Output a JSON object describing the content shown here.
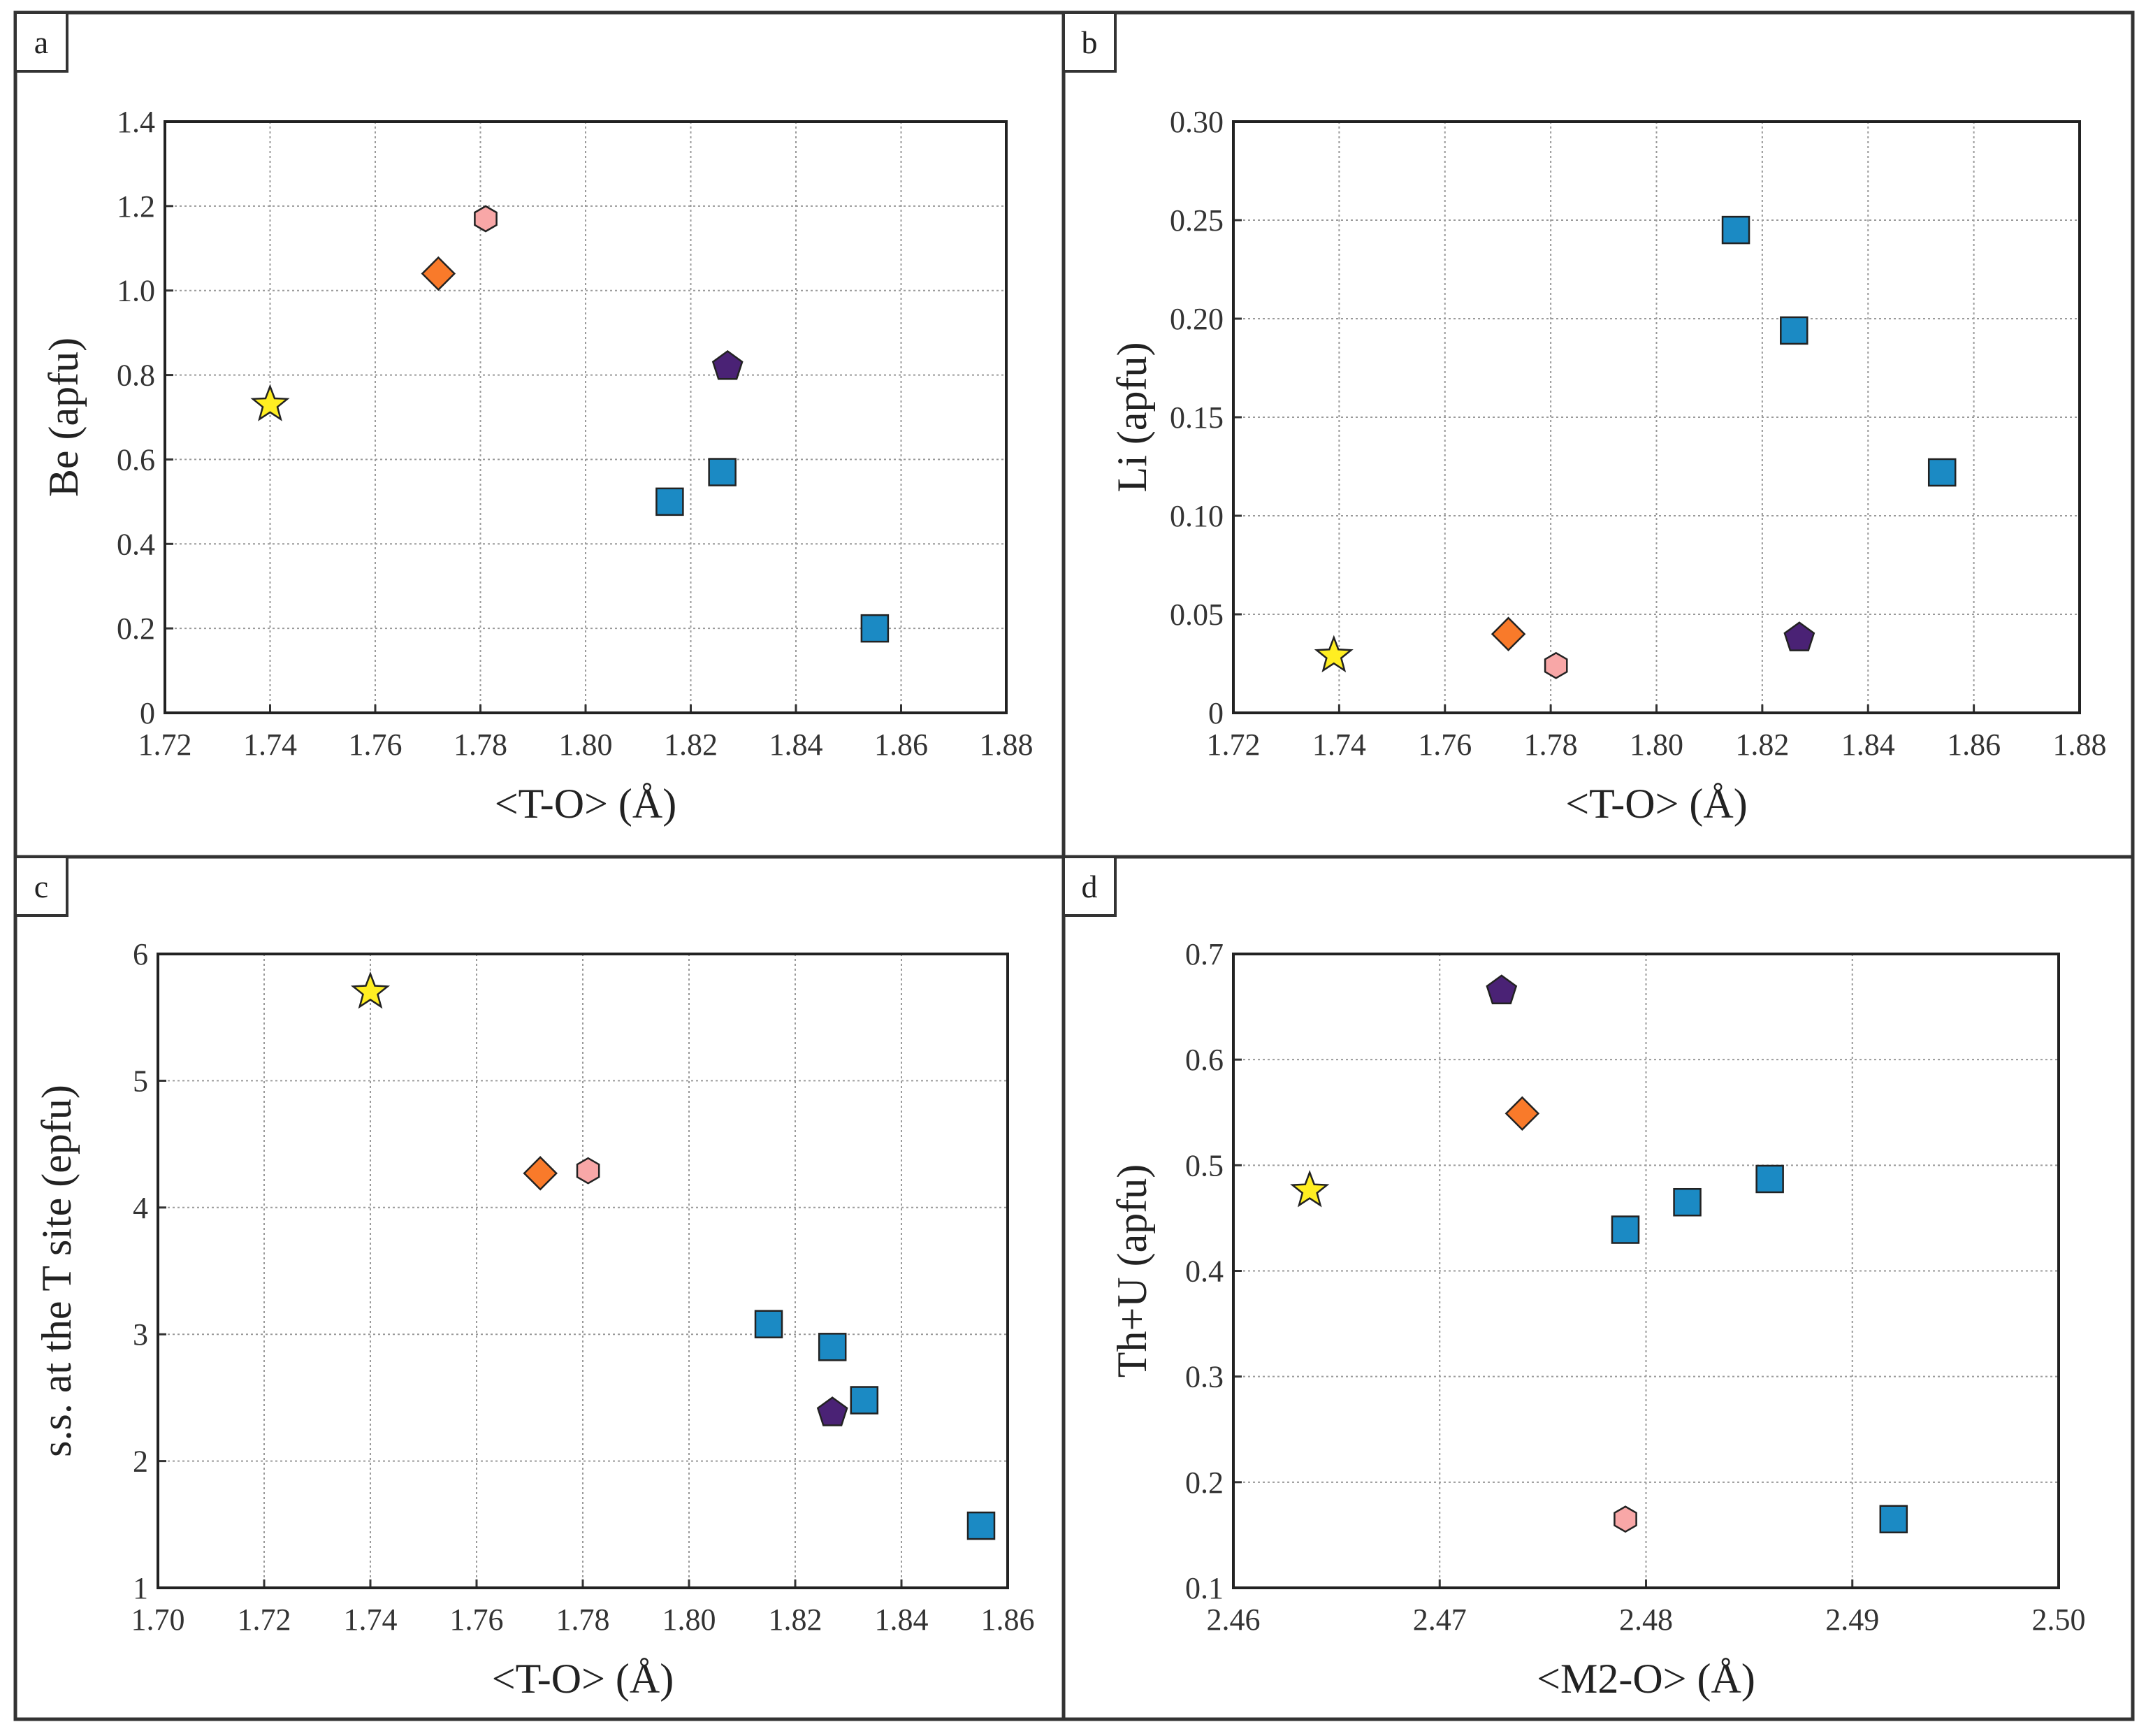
{
  "colors": {
    "star": "#ffee22",
    "diamond": "#f97a2a",
    "hexagon": "#f8a7a7",
    "pentagon": "#4a2275",
    "square": "#1b8ac4"
  },
  "chart_data": [
    {
      "type": "scatter",
      "panel": "a",
      "xlabel": "<T-O> (Å)",
      "ylabel": "Be (apfu)",
      "xlim": [
        1.72,
        1.88
      ],
      "ylim": [
        0,
        1.4
      ],
      "xticks": [
        "1.72",
        "1.74",
        "1.76",
        "1.78",
        "1.80",
        "1.82",
        "1.84",
        "1.86",
        "1.88"
      ],
      "yticks": [
        "0",
        "0.2",
        "0.4",
        "0.6",
        "0.8",
        "1.0",
        "1.2",
        "1.4"
      ],
      "grid": true,
      "points": [
        {
          "marker": "star",
          "x": 1.74,
          "y": 0.73
        },
        {
          "marker": "diamond",
          "x": 1.772,
          "y": 1.04
        },
        {
          "marker": "hexagon",
          "x": 1.781,
          "y": 1.17
        },
        {
          "marker": "pentagon",
          "x": 1.827,
          "y": 0.82
        },
        {
          "marker": "square",
          "x": 1.816,
          "y": 0.5
        },
        {
          "marker": "square",
          "x": 1.826,
          "y": 0.57
        },
        {
          "marker": "square",
          "x": 1.855,
          "y": 0.2
        }
      ]
    },
    {
      "type": "scatter",
      "panel": "b",
      "xlabel": "<T-O> (Å)",
      "ylabel": "Li (apfu)",
      "xlim": [
        1.72,
        1.88
      ],
      "ylim": [
        0,
        0.3
      ],
      "xticks": [
        "1.72",
        "1.74",
        "1.76",
        "1.78",
        "1.80",
        "1.82",
        "1.84",
        "1.86",
        "1.88"
      ],
      "yticks": [
        "0",
        "0.05",
        "0.10",
        "0.15",
        "0.20",
        "0.25",
        "0.30"
      ],
      "grid": true,
      "points": [
        {
          "marker": "star",
          "x": 1.739,
          "y": 0.029
        },
        {
          "marker": "diamond",
          "x": 1.772,
          "y": 0.04
        },
        {
          "marker": "hexagon",
          "x": 1.781,
          "y": 0.024
        },
        {
          "marker": "pentagon",
          "x": 1.827,
          "y": 0.038
        },
        {
          "marker": "square",
          "x": 1.815,
          "y": 0.245
        },
        {
          "marker": "square",
          "x": 1.826,
          "y": 0.194
        },
        {
          "marker": "square",
          "x": 1.854,
          "y": 0.122
        }
      ]
    },
    {
      "type": "scatter",
      "panel": "c",
      "xlabel": "<T-O> (Å)",
      "ylabel": "s.s. at the T site (epfu)",
      "xlim": [
        1.7,
        1.86
      ],
      "ylim": [
        1,
        6
      ],
      "xticks": [
        "1.70",
        "1.72",
        "1.74",
        "1.76",
        "1.78",
        "1.80",
        "1.82",
        "1.84",
        "1.86"
      ],
      "yticks": [
        "1",
        "2",
        "3",
        "4",
        "5",
        "6"
      ],
      "grid": true,
      "points": [
        {
          "marker": "star",
          "x": 1.74,
          "y": 5.7
        },
        {
          "marker": "diamond",
          "x": 1.772,
          "y": 4.27
        },
        {
          "marker": "hexagon",
          "x": 1.781,
          "y": 4.29
        },
        {
          "marker": "pentagon",
          "x": 1.827,
          "y": 2.38
        },
        {
          "marker": "square",
          "x": 1.815,
          "y": 3.08
        },
        {
          "marker": "square",
          "x": 1.827,
          "y": 2.9
        },
        {
          "marker": "square",
          "x": 1.833,
          "y": 2.48
        },
        {
          "marker": "square",
          "x": 1.855,
          "y": 1.49
        }
      ]
    },
    {
      "type": "scatter",
      "panel": "d",
      "xlabel": "<M2-O> (Å)",
      "ylabel": "Th+U (apfu)",
      "xlim": [
        2.46,
        2.5
      ],
      "ylim": [
        0.1,
        0.7
      ],
      "xticks": [
        "2.46",
        "2.47",
        "2.48",
        "2.49",
        "2.50"
      ],
      "yticks": [
        "0.1",
        "0.2",
        "0.3",
        "0.4",
        "0.5",
        "0.6",
        "0.7"
      ],
      "grid": true,
      "points": [
        {
          "marker": "star",
          "x": 2.4637,
          "y": 0.476
        },
        {
          "marker": "diamond",
          "x": 2.474,
          "y": 0.549
        },
        {
          "marker": "hexagon",
          "x": 2.479,
          "y": 0.165
        },
        {
          "marker": "pentagon",
          "x": 2.473,
          "y": 0.665
        },
        {
          "marker": "square",
          "x": 2.479,
          "y": 0.439
        },
        {
          "marker": "square",
          "x": 2.482,
          "y": 0.465
        },
        {
          "marker": "square",
          "x": 2.486,
          "y": 0.487
        },
        {
          "marker": "square",
          "x": 2.492,
          "y": 0.165
        }
      ]
    }
  ]
}
